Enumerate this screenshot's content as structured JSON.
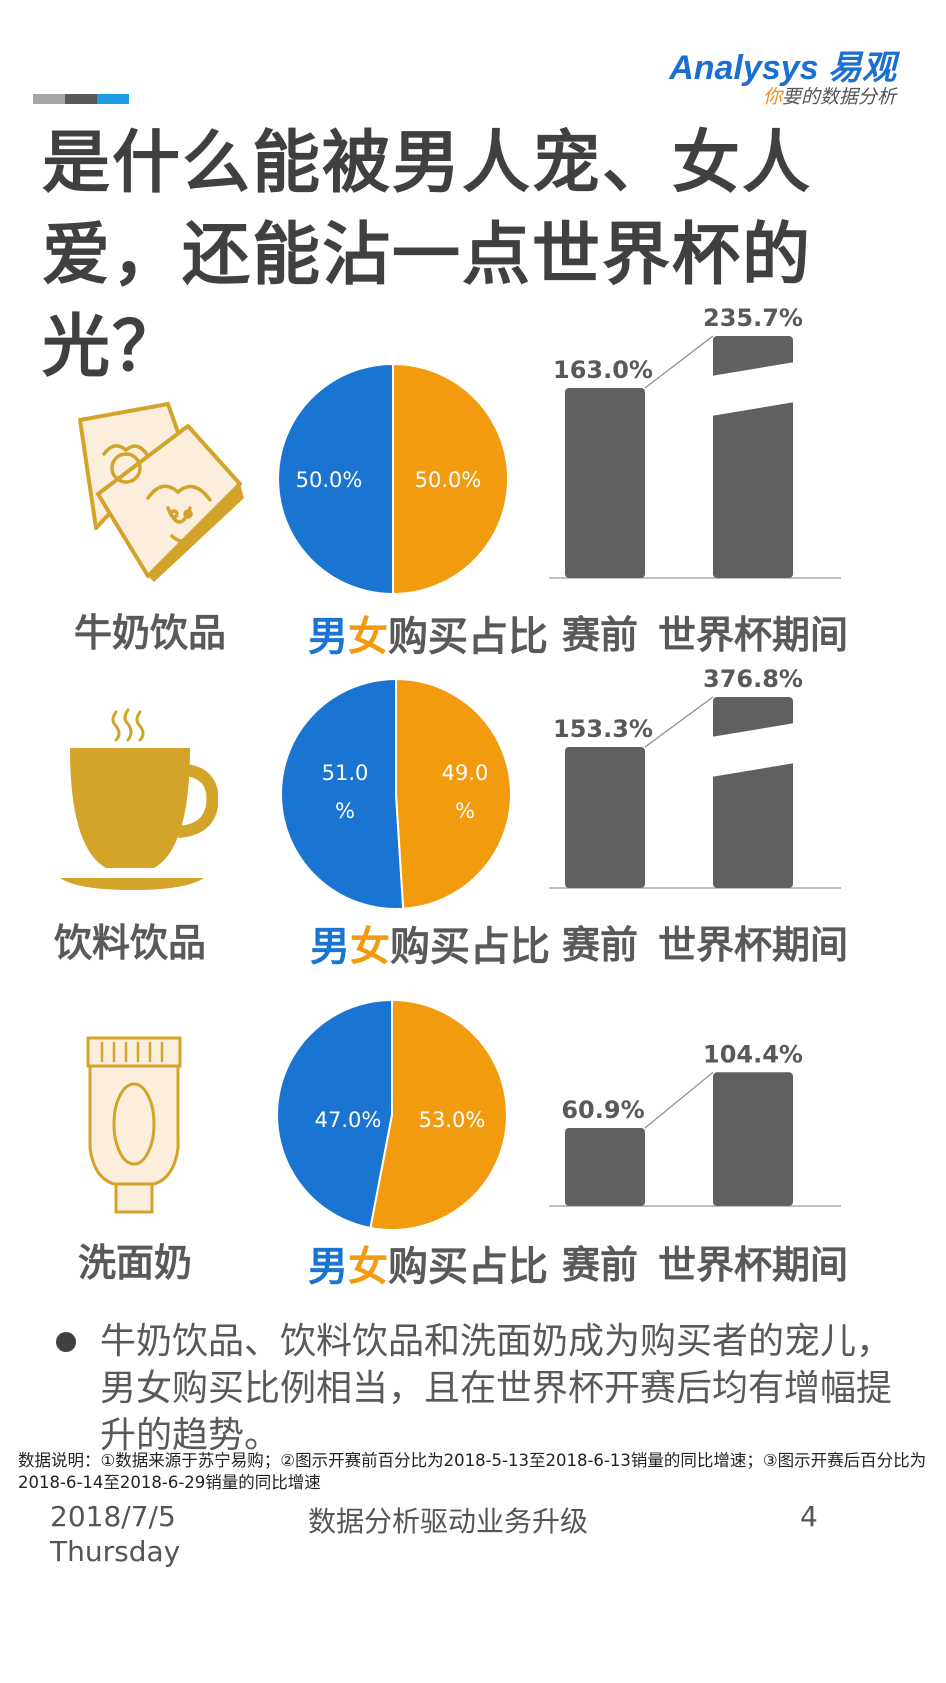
{
  "logo": {
    "main": "Analysys 易观",
    "sub_accent": "你",
    "sub_rest": "要的数据分析"
  },
  "title": "是什么能被男人宠、女人爱，还能沾一点世界杯的光？",
  "pie_label": {
    "male": "男",
    "female": "女",
    "rest": "购买占比"
  },
  "bar_labels": {
    "before": "赛前",
    "during": "世界杯期间"
  },
  "colors": {
    "male": "#1a75d2",
    "female": "#f29b0f",
    "bar": "#606063",
    "icon": "#d4a32a"
  },
  "rows": [
    {
      "category": "牛奶饮品",
      "icon": "milk-box-icon",
      "pie": {
        "male_label": "50.0%",
        "female_label": "50.0%"
      },
      "bars": {
        "before_label": "163.0%",
        "during_label": "235.7%"
      }
    },
    {
      "category": "饮料饮品",
      "icon": "coffee-cup-icon",
      "pie": {
        "male_label": "51.0%",
        "female_label": "49.0%"
      },
      "bars": {
        "before_label": "153.3%",
        "during_label": "376.8%"
      }
    },
    {
      "category": "洗面奶",
      "icon": "cleanser-tube-icon",
      "pie": {
        "male_label": "47.0%",
        "female_label": "53.0%"
      },
      "bars": {
        "before_label": "60.9%",
        "during_label": "104.4%"
      }
    }
  ],
  "chart_data": [
    {
      "type": "pie",
      "categories": [
        "男",
        "女"
      ],
      "values": [
        50.0,
        50.0
      ]
    },
    {
      "type": "bar",
      "categories": [
        "赛前",
        "世界杯期间"
      ],
      "values": [
        163.0,
        235.7
      ]
    },
    {
      "type": "pie",
      "categories": [
        "男",
        "女"
      ],
      "values": [
        51.0,
        49.0
      ]
    },
    {
      "type": "bar",
      "categories": [
        "赛前",
        "世界杯期间"
      ],
      "values": [
        153.3,
        376.8
      ]
    },
    {
      "type": "pie",
      "categories": [
        "男",
        "女"
      ],
      "values": [
        47.0,
        53.0
      ]
    },
    {
      "type": "bar",
      "categories": [
        "赛前",
        "世界杯期间"
      ],
      "values": [
        60.9,
        104.4
      ]
    }
  ],
  "bullet": "牛奶饮品、饮料饮品和洗面奶成为购买者的宠儿，男女购买比例相当，且在世界杯开赛后均有增幅提升的趋势。",
  "note": "数据说明：①数据来源于苏宁易购；②图示开赛前百分比为2018-5-13至2018-6-13销量的同比增速；③图示开赛后百分比为2018-6-14至2018-6-29销量的同比增速",
  "footer": {
    "date": "2018/7/5",
    "weekday": "Thursday",
    "center": "数据分析驱动业务升级",
    "page": "4"
  }
}
